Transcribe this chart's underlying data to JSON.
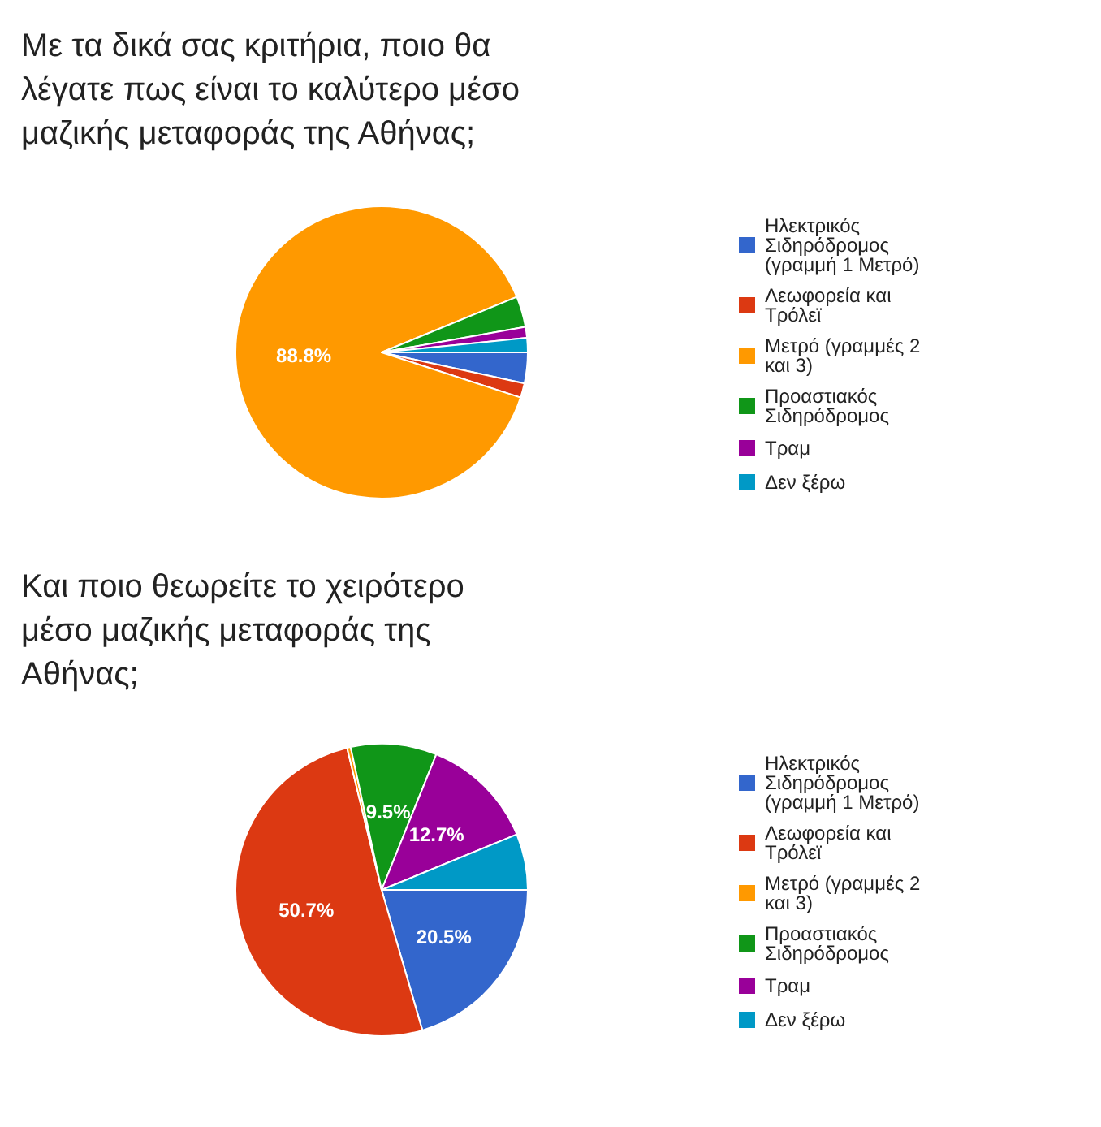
{
  "chart_data": [
    {
      "type": "pie",
      "title": "Με τα δικά σας κριτήρια, ποιο θα λέγατε πως είναι το καλύτερο μέσο μαζικής μεταφοράς της Αθήνας;",
      "categories": [
        "Ηλεκτρικός Σιδηρόδρομος (γραμμή 1 Μετρό)",
        "Λεωφορεία και Τρόλεϊ",
        "Μετρό (γραμμές 2 και 3)",
        "Προαστιακός Σιδηρόδρομος",
        "Τραμ",
        "Δεν ξέρω"
      ],
      "values": [
        3.4,
        1.6,
        88.8,
        3.4,
        1.2,
        1.6
      ],
      "value_labels": [
        null,
        null,
        "88.8%",
        null,
        null,
        null
      ],
      "colors": [
        "#3366cc",
        "#dc3912",
        "#ff9900",
        "#109618",
        "#990099",
        "#0099c6"
      ],
      "legend": "right"
    },
    {
      "type": "pie",
      "title": "Και ποιο θεωρείτε το χειρότερο μέσο μαζικής μεταφοράς της Αθήνας;",
      "categories": [
        "Ηλεκτρικός Σιδηρόδρομος (γραμμή 1 Μετρό)",
        "Λεωφορεία και Τρόλεϊ",
        "Μετρό (γραμμές 2 και 3)",
        "Προαστιακός Σιδηρόδρομος",
        "Τραμ",
        "Δεν ξέρω"
      ],
      "values": [
        20.5,
        50.7,
        0.4,
        9.5,
        12.7,
        6.2
      ],
      "value_labels": [
        "20.5%",
        "50.7%",
        null,
        "9.5%",
        "12.7%",
        null
      ],
      "colors": [
        "#3366cc",
        "#dc3912",
        "#ff9900",
        "#109618",
        "#990099",
        "#0099c6"
      ],
      "legend": "right"
    }
  ]
}
